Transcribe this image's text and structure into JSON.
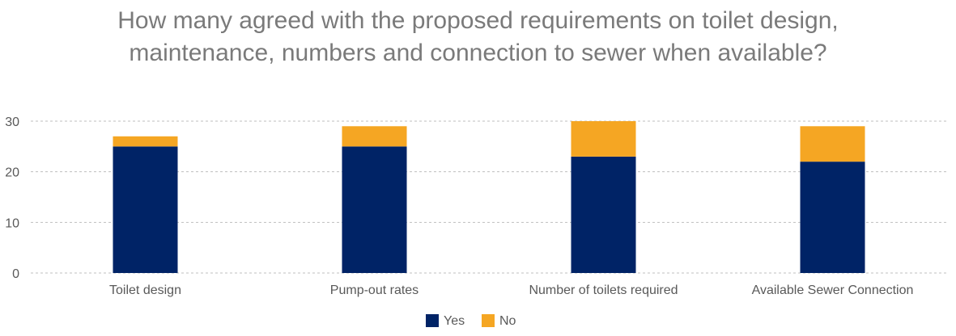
{
  "chart_data": {
    "type": "bar",
    "stacked": true,
    "title_lines": [
      "How many agreed with the proposed requirements on toilet design,",
      "maintenance, numbers and connection to sewer when available?"
    ],
    "categories": [
      "Toilet design",
      "Pump-out rates",
      "Number of toilets required",
      "Available Sewer Connection"
    ],
    "series": [
      {
        "name": "Yes",
        "values": [
          25,
          25,
          23,
          22
        ],
        "color": "#002366"
      },
      {
        "name": "No",
        "values": [
          2,
          4,
          7,
          7
        ],
        "color": "#F5A623"
      }
    ],
    "y_ticks": [
      "0",
      "10",
      "20",
      "30"
    ],
    "ylim": [
      0,
      30
    ],
    "grid": true,
    "legend_position": "bottom"
  }
}
